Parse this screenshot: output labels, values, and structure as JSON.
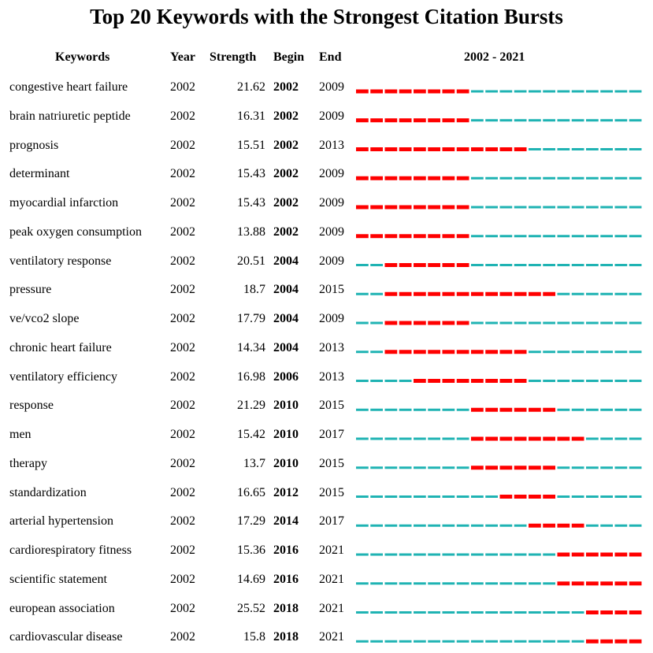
{
  "chart_data": {
    "type": "table",
    "title": "Top 20 Keywords with the Strongest Citation Bursts",
    "columns": [
      "Keywords",
      "Year",
      "Strength",
      "Begin",
      "End",
      "2002 - 2021"
    ],
    "range": [
      2002,
      2021
    ],
    "colors": {
      "burst": "#ff0000",
      "normal": "#1fb3b3"
    },
    "rows": [
      {
        "keyword": "congestive heart failure",
        "year": "2002",
        "strength": "21.62",
        "begin": "2002",
        "end": "2009"
      },
      {
        "keyword": "brain natriuretic peptide",
        "year": "2002",
        "strength": "16.31",
        "begin": "2002",
        "end": "2009"
      },
      {
        "keyword": "prognosis",
        "year": "2002",
        "strength": "15.51",
        "begin": "2002",
        "end": "2013"
      },
      {
        "keyword": "determinant",
        "year": "2002",
        "strength": "15.43",
        "begin": "2002",
        "end": "2009"
      },
      {
        "keyword": "myocardial infarction",
        "year": "2002",
        "strength": "15.43",
        "begin": "2002",
        "end": "2009"
      },
      {
        "keyword": "peak oxygen consumption",
        "year": "2002",
        "strength": "13.88",
        "begin": "2002",
        "end": "2009"
      },
      {
        "keyword": "ventilatory response",
        "year": "2002",
        "strength": "20.51",
        "begin": "2004",
        "end": "2009"
      },
      {
        "keyword": "pressure",
        "year": "2002",
        "strength": "18.7",
        "begin": "2004",
        "end": "2015"
      },
      {
        "keyword": "ve/vco2 slope",
        "year": "2002",
        "strength": "17.79",
        "begin": "2004",
        "end": "2009"
      },
      {
        "keyword": "chronic heart failure",
        "year": "2002",
        "strength": "14.34",
        "begin": "2004",
        "end": "2013"
      },
      {
        "keyword": "ventilatory efficiency",
        "year": "2002",
        "strength": "16.98",
        "begin": "2006",
        "end": "2013"
      },
      {
        "keyword": "response",
        "year": "2002",
        "strength": "21.29",
        "begin": "2010",
        "end": "2015"
      },
      {
        "keyword": "men",
        "year": "2002",
        "strength": "15.42",
        "begin": "2010",
        "end": "2017"
      },
      {
        "keyword": "therapy",
        "year": "2002",
        "strength": "13.7",
        "begin": "2010",
        "end": "2015"
      },
      {
        "keyword": "standardization",
        "year": "2002",
        "strength": "16.65",
        "begin": "2012",
        "end": "2015"
      },
      {
        "keyword": "arterial hypertension",
        "year": "2002",
        "strength": "17.29",
        "begin": "2014",
        "end": "2017"
      },
      {
        "keyword": "cardiorespiratory fitness",
        "year": "2002",
        "strength": "15.36",
        "begin": "2016",
        "end": "2021"
      },
      {
        "keyword": "scientific statement",
        "year": "2002",
        "strength": "14.69",
        "begin": "2016",
        "end": "2021"
      },
      {
        "keyword": "european association",
        "year": "2002",
        "strength": "25.52",
        "begin": "2018",
        "end": "2021"
      },
      {
        "keyword": "cardiovascular disease",
        "year": "2002",
        "strength": "15.8",
        "begin": "2018",
        "end": "2021"
      }
    ]
  }
}
